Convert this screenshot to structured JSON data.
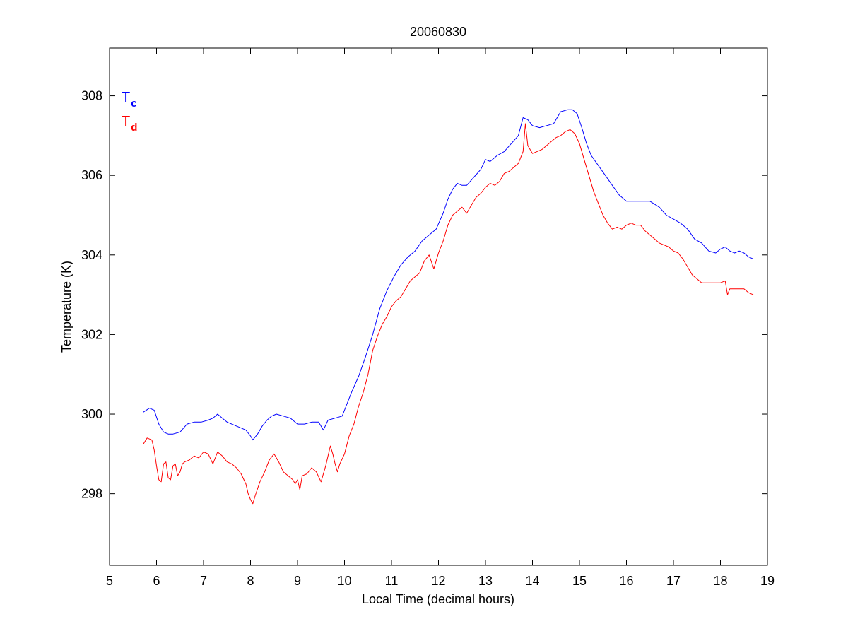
{
  "chart_data": {
    "type": "line",
    "title": "20060830",
    "xlabel": "Local Time (decimal hours)",
    "ylabel": "Temperature (K)",
    "xlim": [
      5,
      19
    ],
    "ylim": [
      296.2,
      309.2
    ],
    "xticks": [
      5,
      6,
      7,
      8,
      9,
      10,
      11,
      12,
      13,
      14,
      15,
      16,
      17,
      18,
      19
    ],
    "yticks": [
      298,
      300,
      302,
      304,
      306,
      308
    ],
    "grid": false,
    "legend_position": "top-left",
    "series": [
      {
        "name": "T",
        "subscript": "c",
        "color": "#0000ff",
        "x": [
          5.72,
          5.85,
          5.95,
          6.05,
          6.15,
          6.25,
          6.35,
          6.5,
          6.65,
          6.8,
          6.95,
          7.1,
          7.2,
          7.3,
          7.4,
          7.5,
          7.6,
          7.7,
          7.8,
          7.9,
          8.0,
          8.05,
          8.15,
          8.25,
          8.35,
          8.45,
          8.55,
          8.7,
          8.85,
          9.0,
          9.15,
          9.3,
          9.45,
          9.55,
          9.65,
          9.8,
          9.95,
          10.05,
          10.15,
          10.3,
          10.45,
          10.6,
          10.75,
          10.9,
          11.05,
          11.2,
          11.35,
          11.5,
          11.65,
          11.8,
          11.95,
          12.1,
          12.2,
          12.3,
          12.4,
          12.5,
          12.6,
          12.75,
          12.9,
          13.0,
          13.1,
          13.25,
          13.4,
          13.55,
          13.7,
          13.8,
          13.9,
          14.0,
          14.15,
          14.3,
          14.45,
          14.6,
          14.75,
          14.85,
          14.95,
          15.05,
          15.15,
          15.25,
          15.4,
          15.55,
          15.7,
          15.85,
          16.0,
          16.15,
          16.3,
          16.5,
          16.7,
          16.85,
          17.0,
          17.15,
          17.3,
          17.45,
          17.6,
          17.75,
          17.9,
          18.0,
          18.1,
          18.2,
          18.3,
          18.4,
          18.5,
          18.6,
          18.7
        ],
        "values": [
          300.05,
          300.15,
          300.1,
          299.75,
          299.55,
          299.5,
          299.5,
          299.55,
          299.75,
          299.8,
          299.8,
          299.85,
          299.9,
          300.0,
          299.9,
          299.8,
          299.75,
          299.7,
          299.65,
          299.6,
          299.45,
          299.35,
          299.5,
          299.7,
          299.85,
          299.95,
          300.0,
          299.95,
          299.9,
          299.75,
          299.75,
          299.8,
          299.8,
          299.6,
          299.85,
          299.9,
          299.95,
          300.25,
          300.55,
          300.95,
          301.45,
          302.0,
          302.65,
          303.1,
          303.45,
          303.75,
          303.95,
          304.1,
          304.35,
          304.5,
          304.65,
          305.05,
          305.4,
          305.65,
          305.8,
          305.75,
          305.75,
          305.95,
          306.15,
          306.4,
          306.35,
          306.5,
          306.6,
          306.8,
          307.0,
          307.45,
          307.4,
          307.25,
          307.2,
          307.25,
          307.3,
          307.6,
          307.65,
          307.65,
          307.55,
          307.2,
          306.8,
          306.5,
          306.25,
          306.0,
          305.75,
          305.5,
          305.35,
          305.35,
          305.35,
          305.35,
          305.2,
          305.0,
          304.9,
          304.8,
          304.65,
          304.4,
          304.3,
          304.1,
          304.05,
          304.15,
          304.2,
          304.1,
          304.05,
          304.1,
          304.05,
          303.95,
          303.9
        ]
      },
      {
        "name": "T",
        "subscript": "d",
        "color": "#ff0000",
        "x": [
          5.72,
          5.8,
          5.9,
          5.95,
          6.0,
          6.05,
          6.1,
          6.15,
          6.2,
          6.25,
          6.3,
          6.35,
          6.4,
          6.45,
          6.5,
          6.55,
          6.6,
          6.7,
          6.8,
          6.9,
          7.0,
          7.1,
          7.2,
          7.3,
          7.4,
          7.5,
          7.6,
          7.7,
          7.8,
          7.9,
          7.95,
          8.0,
          8.05,
          8.1,
          8.2,
          8.3,
          8.4,
          8.5,
          8.6,
          8.7,
          8.8,
          8.9,
          8.95,
          9.0,
          9.05,
          9.1,
          9.2,
          9.3,
          9.4,
          9.5,
          9.6,
          9.7,
          9.75,
          9.8,
          9.85,
          9.9,
          10.0,
          10.1,
          10.2,
          10.3,
          10.4,
          10.5,
          10.6,
          10.7,
          10.8,
          10.9,
          11.0,
          11.1,
          11.2,
          11.3,
          11.4,
          11.5,
          11.6,
          11.7,
          11.8,
          11.9,
          12.0,
          12.1,
          12.2,
          12.3,
          12.4,
          12.5,
          12.6,
          12.7,
          12.8,
          12.9,
          13.0,
          13.1,
          13.2,
          13.3,
          13.4,
          13.5,
          13.6,
          13.7,
          13.8,
          13.85,
          13.9,
          14.0,
          14.1,
          14.2,
          14.3,
          14.4,
          14.5,
          14.6,
          14.7,
          14.8,
          14.9,
          15.0,
          15.1,
          15.2,
          15.3,
          15.4,
          15.5,
          15.6,
          15.7,
          15.8,
          15.9,
          16.0,
          16.1,
          16.2,
          16.3,
          16.4,
          16.5,
          16.6,
          16.7,
          16.8,
          16.9,
          17.0,
          17.1,
          17.2,
          17.3,
          17.4,
          17.5,
          17.6,
          17.7,
          17.8,
          17.9,
          18.0,
          18.1,
          18.15,
          18.2,
          18.3,
          18.4,
          18.5,
          18.6,
          18.7
        ],
        "values": [
          299.25,
          299.4,
          299.35,
          299.1,
          298.7,
          298.35,
          298.3,
          298.75,
          298.8,
          298.4,
          298.35,
          298.7,
          298.75,
          298.45,
          298.55,
          298.75,
          298.8,
          298.85,
          298.95,
          298.9,
          299.05,
          299.0,
          298.75,
          299.05,
          298.95,
          298.8,
          298.75,
          298.65,
          298.5,
          298.25,
          298.0,
          297.85,
          297.75,
          297.95,
          298.3,
          298.55,
          298.85,
          299.0,
          298.8,
          298.55,
          298.45,
          298.35,
          298.25,
          298.35,
          298.1,
          298.45,
          298.5,
          298.65,
          298.55,
          298.3,
          298.7,
          299.2,
          299.0,
          298.75,
          298.55,
          298.75,
          299.0,
          299.45,
          299.75,
          300.2,
          300.55,
          301.0,
          301.6,
          301.95,
          302.25,
          302.45,
          302.7,
          302.85,
          302.95,
          303.15,
          303.35,
          303.45,
          303.55,
          303.85,
          304.0,
          303.65,
          304.05,
          304.35,
          304.75,
          305.0,
          305.1,
          305.2,
          305.05,
          305.25,
          305.45,
          305.55,
          305.7,
          305.8,
          305.75,
          305.85,
          306.05,
          306.1,
          306.2,
          306.3,
          306.6,
          307.3,
          306.75,
          306.55,
          306.6,
          306.65,
          306.75,
          306.85,
          306.95,
          307.0,
          307.1,
          307.15,
          307.05,
          306.8,
          306.4,
          306.0,
          305.6,
          305.3,
          305.0,
          304.8,
          304.65,
          304.7,
          304.65,
          304.75,
          304.8,
          304.75,
          304.75,
          304.6,
          304.5,
          304.4,
          304.3,
          304.25,
          304.2,
          304.1,
          304.05,
          303.9,
          303.7,
          303.5,
          303.4,
          303.3,
          303.3,
          303.3,
          303.3,
          303.3,
          303.35,
          303.0,
          303.15,
          303.15,
          303.15,
          303.15,
          303.05,
          303.0
        ]
      }
    ]
  }
}
